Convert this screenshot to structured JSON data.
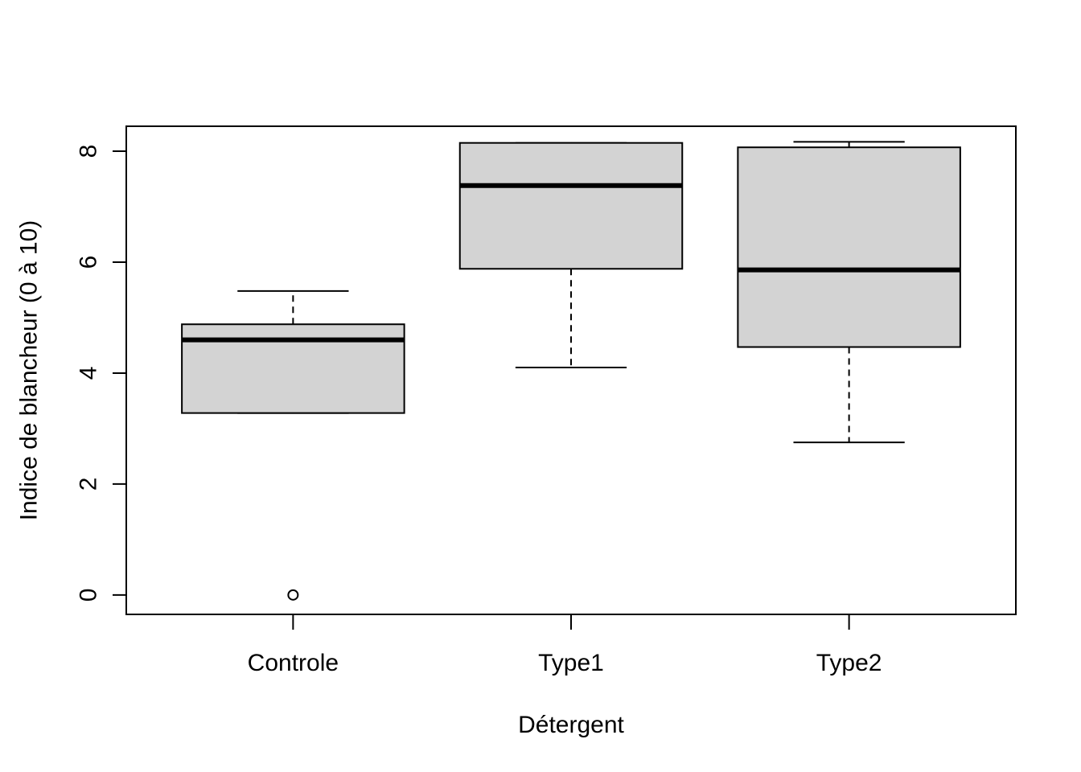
{
  "chart_data": {
    "type": "boxplot",
    "title": "",
    "xlabel": "Détergent",
    "ylabel": "Indice de blancheur (0 à 10)",
    "ylim": [
      -0.35,
      8.45
    ],
    "yticks": [
      0,
      2,
      4,
      6,
      8
    ],
    "grid": false,
    "legend": "none",
    "box_fill": "#d3d3d3",
    "categories": [
      "Controle",
      "Type1",
      "Type2"
    ],
    "boxes": [
      {
        "category": "Controle",
        "whisker_low": 3.28,
        "q1": 3.28,
        "median": 4.6,
        "q3": 4.88,
        "whisker_high": 5.48,
        "outliers": [
          0
        ]
      },
      {
        "category": "Type1",
        "whisker_low": 4.1,
        "q1": 5.88,
        "median": 7.38,
        "q3": 8.15,
        "whisker_high": 8.15,
        "outliers": []
      },
      {
        "category": "Type2",
        "whisker_low": 2.75,
        "q1": 4.47,
        "median": 5.86,
        "q3": 8.07,
        "whisker_high": 8.17,
        "outliers": []
      }
    ]
  }
}
